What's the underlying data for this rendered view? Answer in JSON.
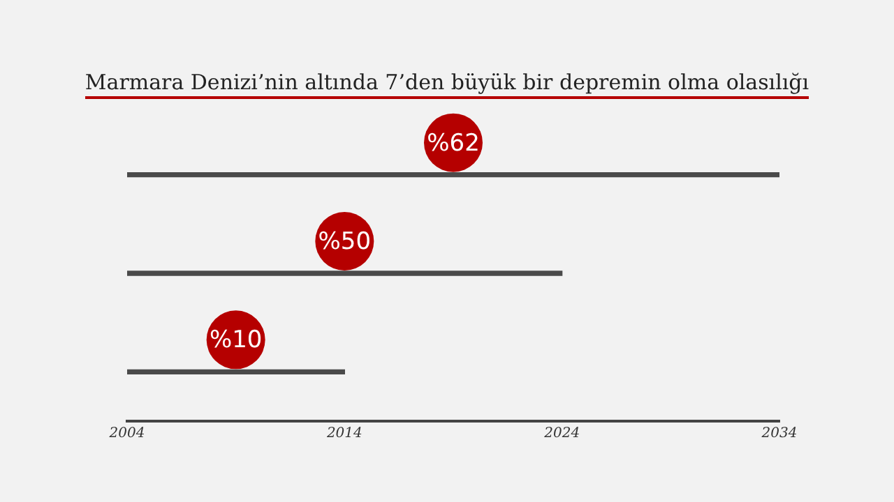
{
  "chart_data": {
    "type": "bar",
    "orientation": "horizontal",
    "title": "Marmara Denizi’nin altında 7’den büyük bir depremin olma olasılığı",
    "categories": [
      null,
      null,
      null
    ],
    "base": [
      2004,
      2004,
      2004
    ],
    "values": [
      30,
      20,
      10
    ],
    "annotations": [
      "%62",
      "%50",
      "%10"
    ],
    "color": "#4a4a4a",
    "xlim": [
      2004,
      2034
    ],
    "xticks": [
      2004,
      2014,
      2024,
      2034
    ],
    "grid": false,
    "legend": false
  }
}
